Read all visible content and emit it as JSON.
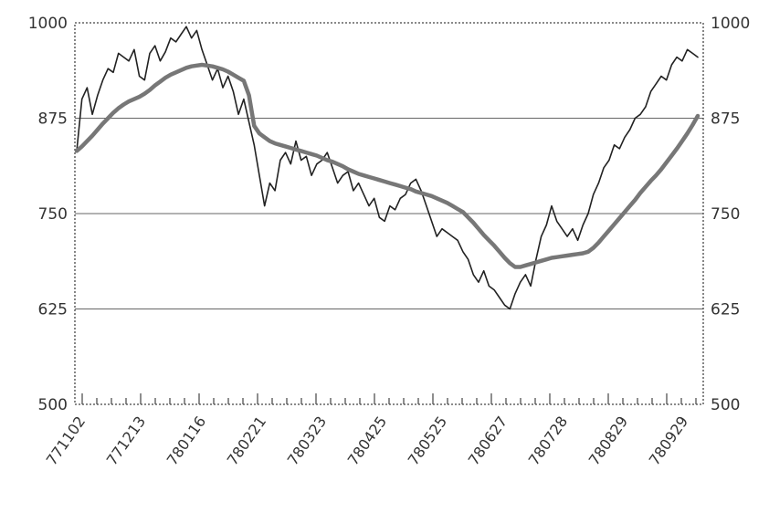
{
  "chart_data": {
    "type": "line",
    "title": "",
    "xlabel": "",
    "ylabel": "",
    "ylim": [
      500,
      1000
    ],
    "y_ticks": [
      500,
      625,
      750,
      875,
      1000
    ],
    "y_tick_labels": [
      "500",
      "625",
      "750",
      "875",
      "1000"
    ],
    "y2_tick_labels": [
      "500",
      "625",
      "750",
      "875",
      "1000"
    ],
    "x_tick_labels": [
      "771102",
      "771213",
      "780116",
      "780221",
      "780323",
      "780425",
      "780525",
      "780627",
      "780728",
      "780829",
      "780929"
    ],
    "grid": "horizontal",
    "legend": "none",
    "colors": {
      "daily": "#222222",
      "moving_average": "#777777",
      "grid": "#666666",
      "frame": "#444444"
    },
    "series": [
      {
        "values": [
          832,
          900,
          915,
          880,
          905,
          925,
          940,
          935,
          960,
          955,
          950,
          965,
          930,
          925,
          960,
          970,
          950,
          962,
          980,
          975,
          985,
          995,
          980,
          990,
          965,
          945,
          925,
          940,
          915,
          930,
          910,
          880,
          900,
          870,
          840,
          800,
          760,
          790,
          780,
          820,
          830,
          815,
          845,
          820,
          825,
          800,
          815,
          820,
          830,
          810,
          790,
          800,
          805,
          780,
          790,
          775,
          760,
          770,
          745,
          740,
          760,
          755,
          770,
          775,
          790,
          795,
          780,
          760,
          740,
          720,
          730,
          725,
          720,
          715,
          700,
          690,
          670,
          660,
          675,
          655,
          650,
          640,
          630,
          625,
          645,
          660,
          670,
          655,
          690,
          720,
          735,
          760,
          740,
          730,
          720,
          730,
          715,
          735,
          750,
          775,
          790,
          810,
          820,
          840,
          835,
          850,
          860,
          875,
          880,
          890,
          910,
          920,
          930,
          925,
          945,
          955,
          950,
          965,
          960,
          955
        ]
      },
      {
        "values": [
          832,
          838,
          845,
          852,
          860,
          868,
          875,
          882,
          888,
          893,
          897,
          900,
          903,
          907,
          912,
          918,
          923,
          928,
          932,
          935,
          938,
          941,
          943,
          944,
          945,
          944,
          943,
          941,
          939,
          936,
          932,
          928,
          924,
          905,
          865,
          855,
          850,
          845,
          842,
          840,
          838,
          836,
          834,
          832,
          830,
          828,
          826,
          823,
          820,
          818,
          815,
          812,
          808,
          805,
          802,
          800,
          798,
          796,
          794,
          792,
          790,
          788,
          786,
          784,
          782,
          779,
          777,
          775,
          773,
          770,
          767,
          764,
          760,
          756,
          752,
          745,
          738,
          730,
          722,
          715,
          708,
          700,
          692,
          685,
          680,
          680,
          682,
          684,
          686,
          688,
          690,
          692,
          693,
          694,
          695,
          696,
          697,
          698,
          700,
          705,
          712,
          720,
          728,
          736,
          744,
          752,
          760,
          768,
          777,
          785,
          793,
          800,
          808,
          817,
          826,
          835,
          845,
          855,
          866,
          878
        ]
      }
    ]
  }
}
